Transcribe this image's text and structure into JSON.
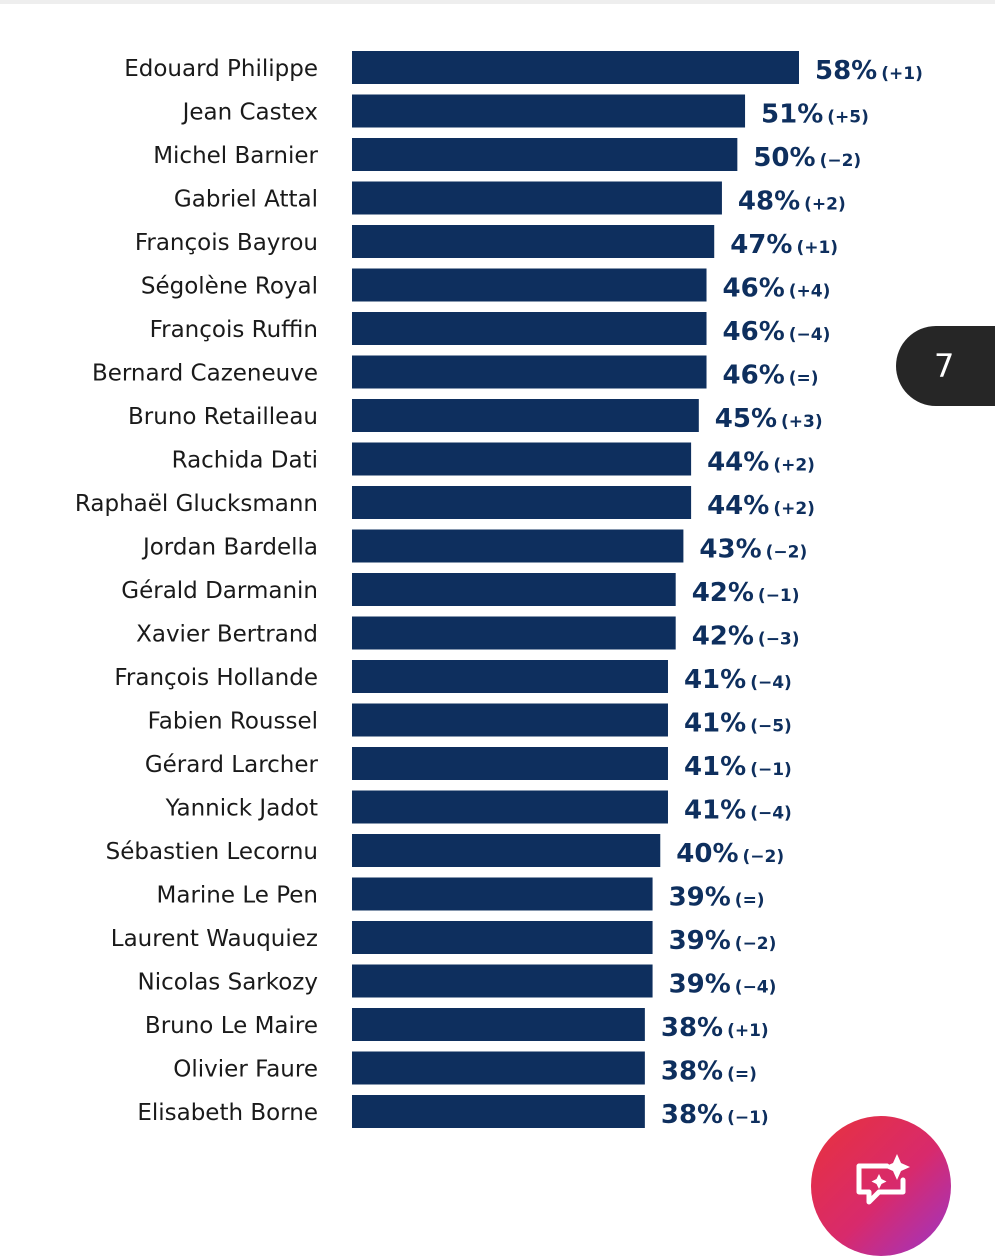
{
  "chart_data": {
    "type": "bar",
    "orientation": "horizontal",
    "title": "",
    "xlabel": "",
    "ylabel": "",
    "xlim": [
      0,
      60
    ],
    "grid": false,
    "legend": "none",
    "bar_color": "#0e2f5e",
    "categories": [
      "Edouard Philippe",
      "Jean Castex",
      "Michel Barnier",
      "Gabriel Attal",
      "François Bayrou",
      "Ségolène Royal",
      "François Ruffin",
      "Bernard Cazeneuve",
      "Bruno Retailleau",
      "Rachida Dati",
      "Raphaël Glucksmann",
      "Jordan Bardella",
      "Gérald Darmanin",
      "Xavier Bertrand",
      "François Hollande",
      "Fabien Roussel",
      "Gérard Larcher",
      "Yannick Jadot",
      "Sébastien Lecornu",
      "Marine Le Pen",
      "Laurent Wauquiez",
      "Nicolas Sarkozy",
      "Bruno Le Maire",
      "Olivier Faure",
      "Elisabeth Borne"
    ],
    "values": [
      58,
      51,
      50,
      48,
      47,
      46,
      46,
      46,
      45,
      44,
      44,
      43,
      42,
      42,
      41,
      41,
      41,
      41,
      40,
      39,
      39,
      39,
      38,
      38,
      38
    ],
    "value_labels": [
      "58%",
      "51%",
      "50%",
      "48%",
      "47%",
      "46%",
      "46%",
      "46%",
      "45%",
      "44%",
      "44%",
      "43%",
      "42%",
      "42%",
      "41%",
      "41%",
      "41%",
      "41%",
      "40%",
      "39%",
      "39%",
      "39%",
      "38%",
      "38%",
      "38%"
    ],
    "changes": [
      "(+1)",
      "(+5)",
      "(−2)",
      "(+2)",
      "(+1)",
      "(+4)",
      "(−4)",
      "(=)",
      "(+3)",
      "(+2)",
      "(+2)",
      "(−2)",
      "(−1)",
      "(−3)",
      "(−4)",
      "(−5)",
      "(−1)",
      "(−4)",
      "(−2)",
      "(=)",
      "(−2)",
      "(−4)",
      "(+1)",
      "(=)",
      "(−1)"
    ]
  },
  "page_badge": {
    "number": "7"
  },
  "fab": {
    "icon": "sparkle-chat-icon"
  }
}
